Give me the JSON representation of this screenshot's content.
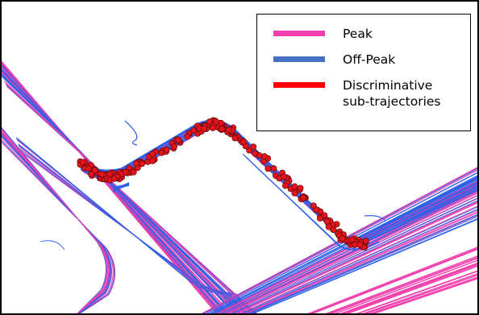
{
  "legend": {
    "entries": [
      {
        "label": "Peak",
        "color": "#f13fae"
      },
      {
        "label": "Off-Peak",
        "color": "#4571c4"
      },
      {
        "label": "Discriminative\nsub-trajectories",
        "color": "#ff0000"
      }
    ]
  },
  "colors": {
    "peak": "#f13fae",
    "off_peak": "#2f62e8",
    "discriminative_fill": "#e8141c",
    "discriminative_edge": "#5a0a0a",
    "frame": "#000000",
    "background": "#ffffff"
  }
}
